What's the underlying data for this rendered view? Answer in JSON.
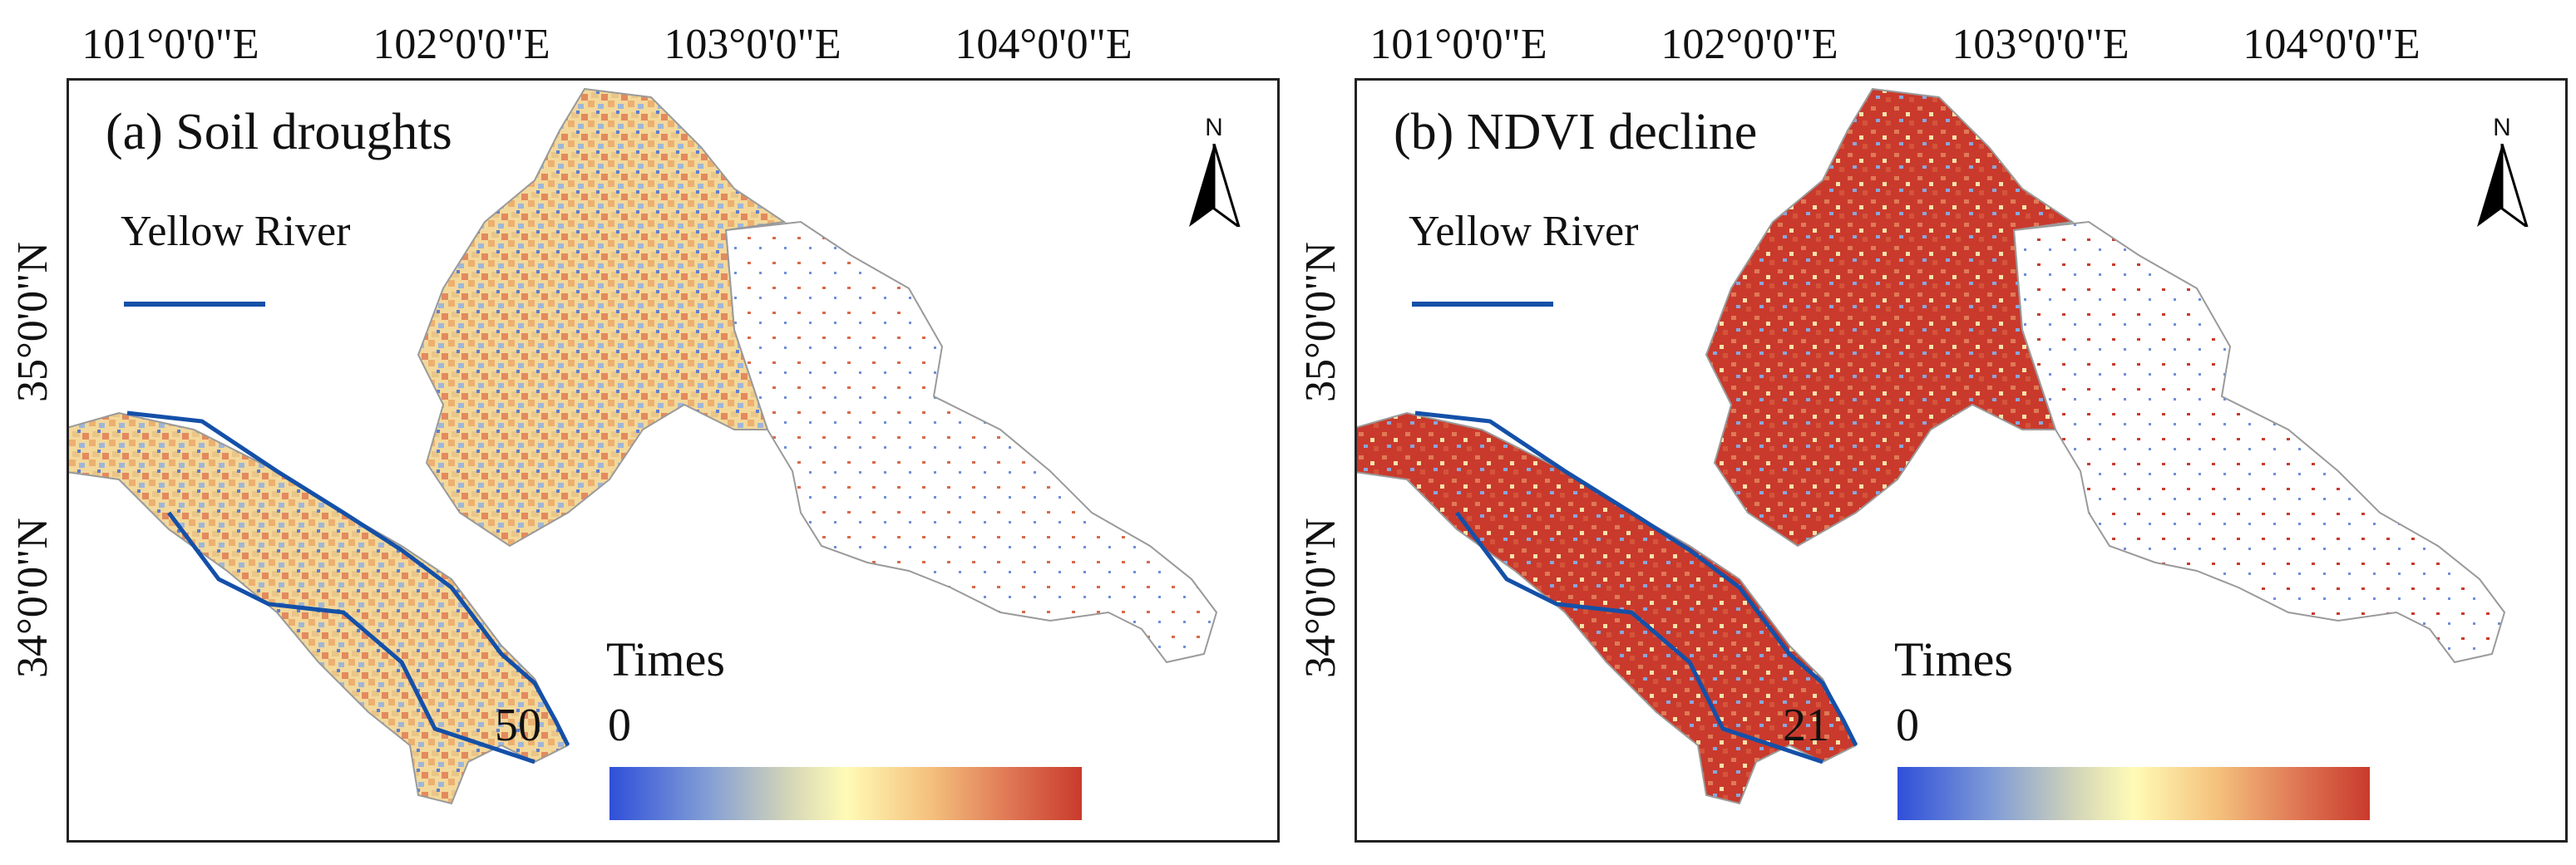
{
  "x_ticks": [
    "101°0'0\"E",
    "102°0'0\"E",
    "103°0'0\"E",
    "104°0'0\"E"
  ],
  "y_ticks": [
    "35°0'0\"N",
    "34°0'0\"N"
  ],
  "panels": [
    {
      "id": "a",
      "title": "(a) Soil droughts",
      "river_label": "Yellow River",
      "north_label": "N",
      "legend_title": "Times",
      "min_label": "0",
      "max_label": "50",
      "palette": {
        "low": "#2f4fd9",
        "mid": "#fffbb6",
        "high": "#c93a2c",
        "river": "#1450a8"
      }
    },
    {
      "id": "b",
      "title": "(b) NDVI decline",
      "river_label": "Yellow River",
      "north_label": "N",
      "legend_title": "Times",
      "min_label": "0",
      "max_label": "21",
      "palette": {
        "low": "#2f4fd9",
        "mid": "#fffbb6",
        "high": "#c93a2c",
        "river": "#1450a8"
      }
    }
  ]
}
